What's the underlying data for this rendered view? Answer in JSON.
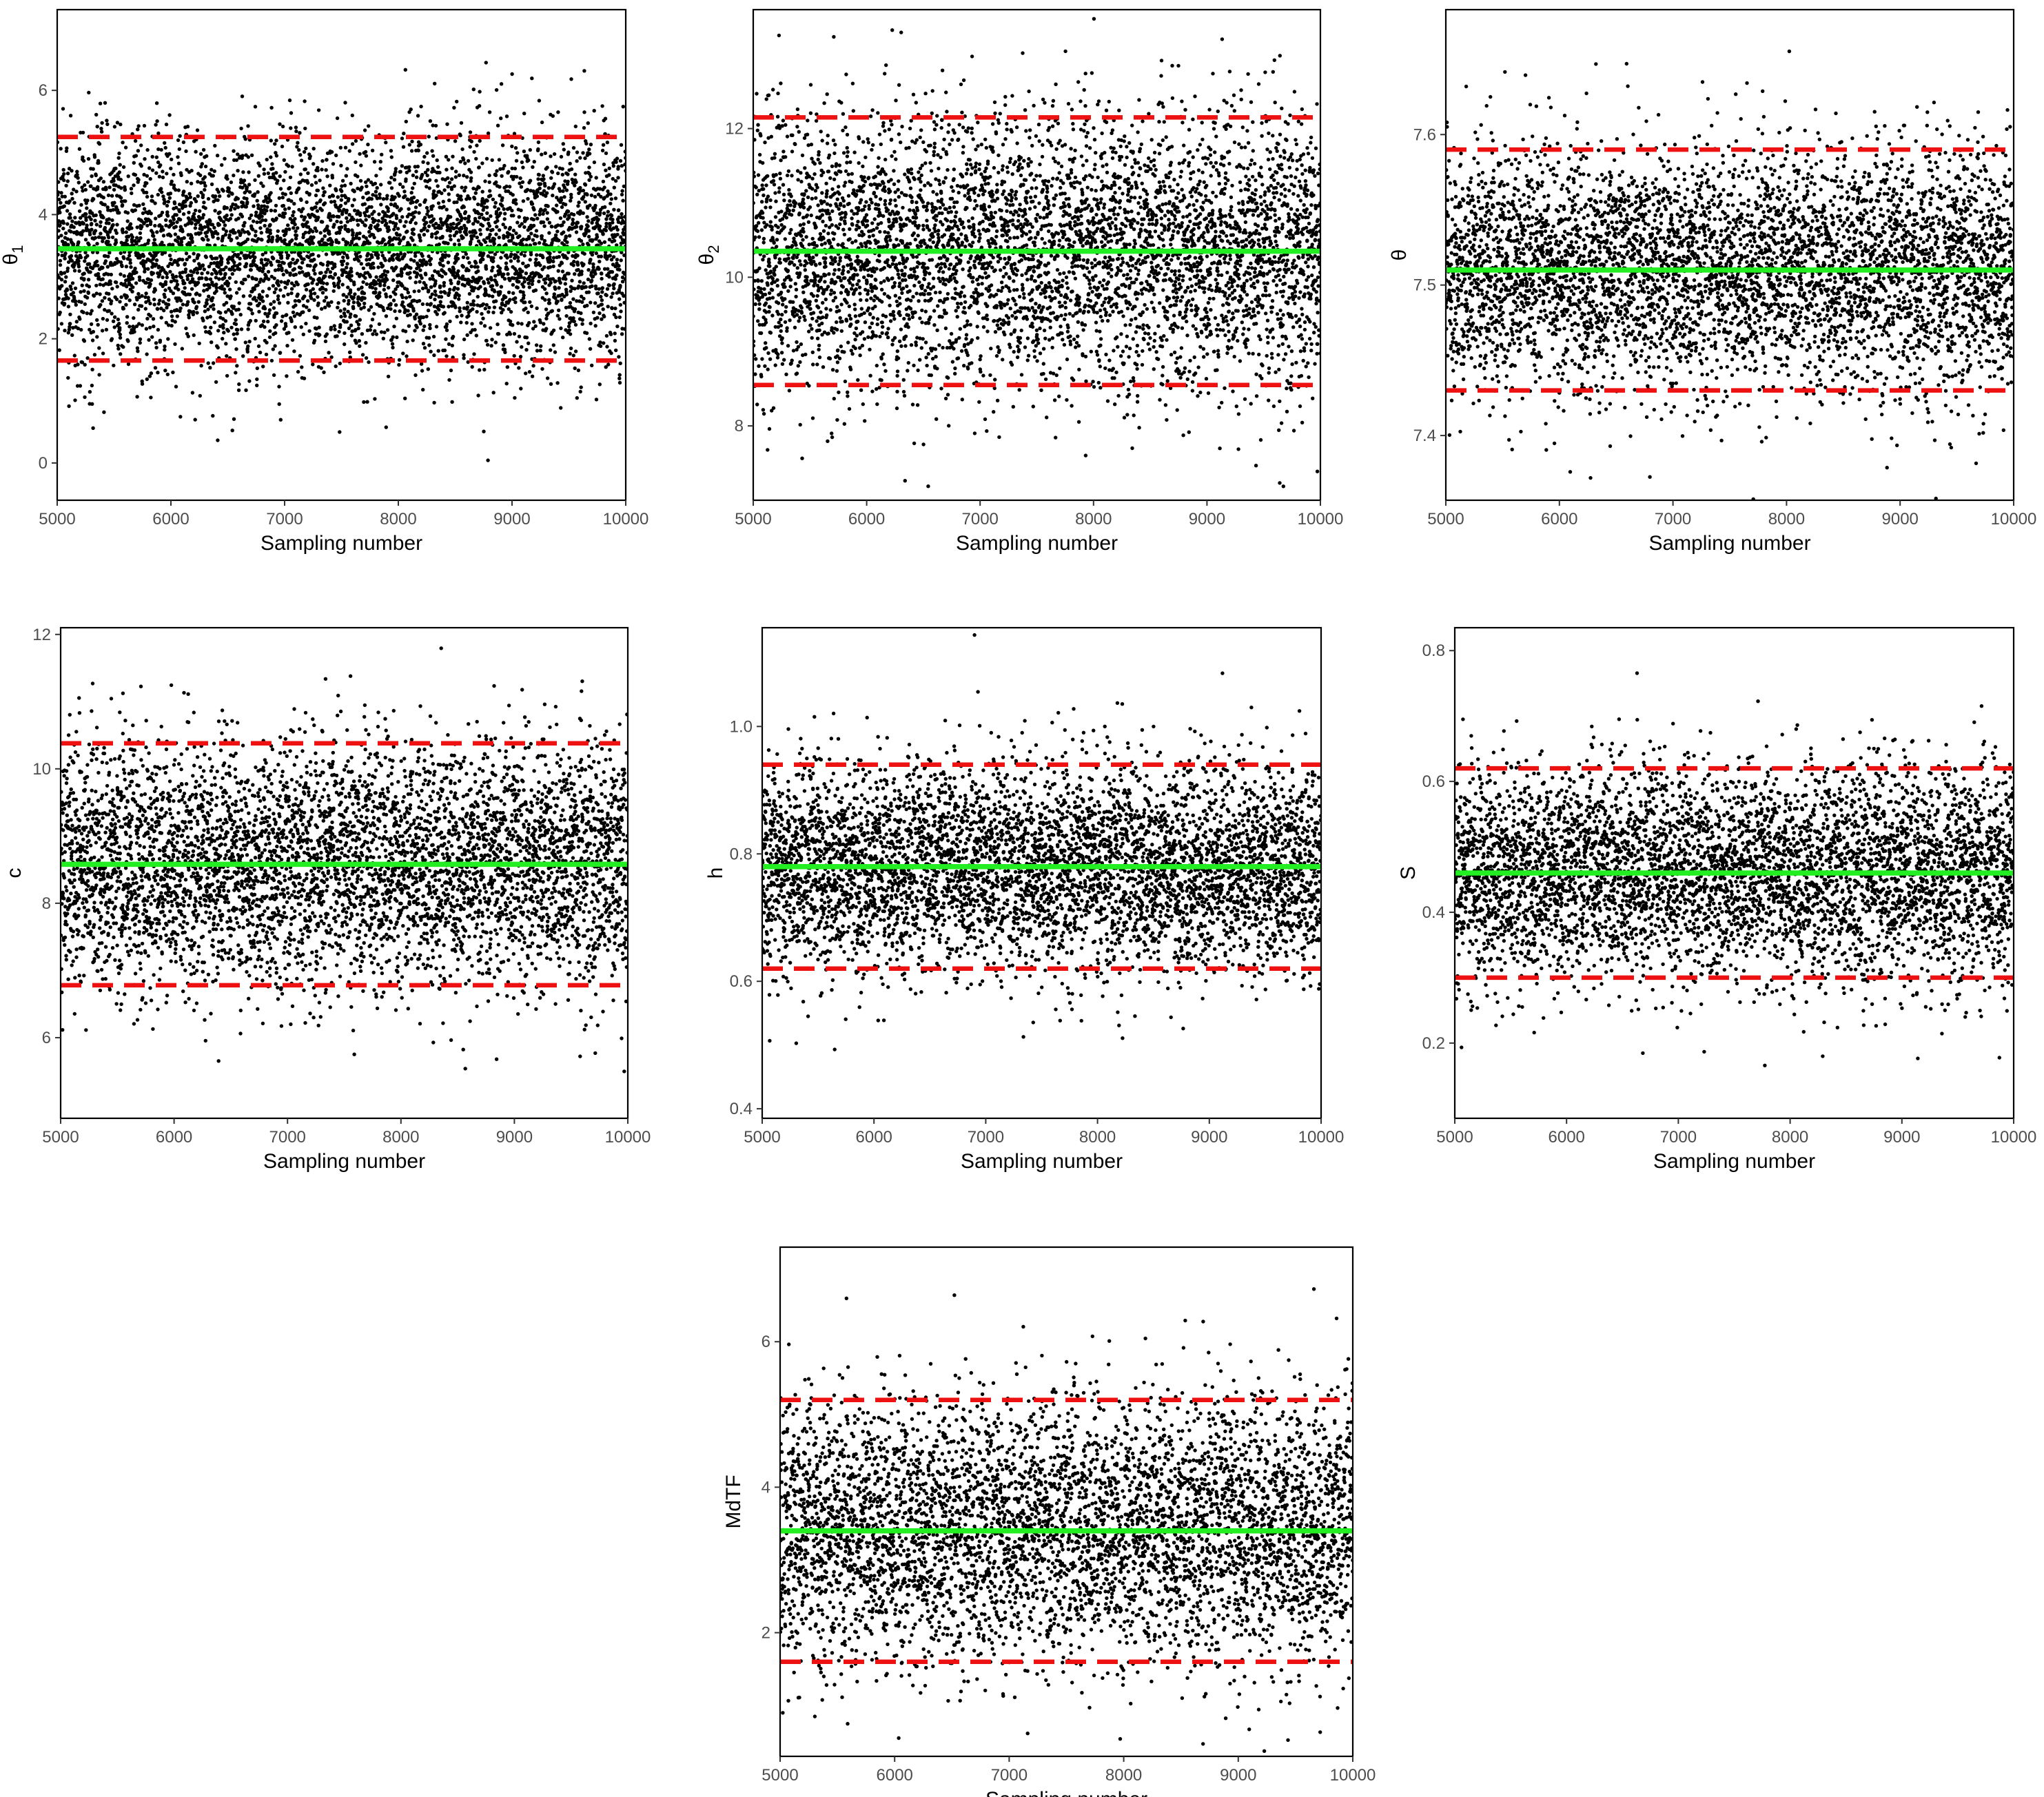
{
  "figure": {
    "description_label": "MCMC trace plots"
  },
  "colors": {
    "points": "#000000",
    "mean_line": "#22ee22",
    "ci_line": "#ee1111",
    "tick_text": "#4d4d4d"
  },
  "chart_data": [
    {
      "type": "scatter",
      "id": "theta1",
      "xlabel": "Sampling number",
      "ylabel": "θ",
      "ylabel_sub": "1",
      "xlim": [
        5000,
        10000
      ],
      "ylim": [
        -0.6,
        7.3
      ],
      "xticks": [
        5000,
        6000,
        7000,
        8000,
        9000,
        10000
      ],
      "yticks": [
        0,
        2,
        4,
        6
      ],
      "ytick_labels": [
        "0",
        "2",
        "4",
        "6"
      ],
      "mean": 3.45,
      "ci_lower": 1.65,
      "ci_upper": 5.25,
      "n_points": 5000
    },
    {
      "type": "scatter",
      "id": "theta2",
      "xlabel": "Sampling number",
      "ylabel": "θ",
      "ylabel_sub": "2",
      "xlim": [
        5000,
        10000
      ],
      "ylim": [
        7.0,
        13.6
      ],
      "xticks": [
        5000,
        6000,
        7000,
        8000,
        9000,
        10000
      ],
      "yticks": [
        8,
        10,
        12
      ],
      "ytick_labels": [
        "8",
        "10",
        "12"
      ],
      "mean": 10.35,
      "ci_lower": 8.55,
      "ci_upper": 12.15,
      "n_points": 5000
    },
    {
      "type": "scatter",
      "id": "theta",
      "xlabel": "Sampling number",
      "ylabel": "θ",
      "ylabel_sub": "",
      "xlim": [
        5000,
        10000
      ],
      "ylim": [
        7.357,
        7.683
      ],
      "xticks": [
        5000,
        6000,
        7000,
        8000,
        9000,
        10000
      ],
      "yticks": [
        7.4,
        7.5,
        7.6
      ],
      "ytick_labels": [
        "7.4",
        "7.5",
        "7.6"
      ],
      "mean": 7.51,
      "ci_lower": 7.43,
      "ci_upper": 7.59,
      "n_points": 5000
    },
    {
      "type": "scatter",
      "id": "c",
      "xlabel": "Sampling number",
      "ylabel": "c",
      "ylabel_sub": "",
      "xlim": [
        5000,
        10000
      ],
      "ylim": [
        4.8,
        12.1
      ],
      "xticks": [
        5000,
        6000,
        7000,
        8000,
        9000,
        10000
      ],
      "yticks": [
        6,
        8,
        10,
        12
      ],
      "ytick_labels": [
        "6",
        "8",
        "10",
        "12"
      ],
      "mean": 8.58,
      "ci_lower": 6.78,
      "ci_upper": 10.38,
      "n_points": 5000
    },
    {
      "type": "scatter",
      "id": "h",
      "xlabel": "Sampling number",
      "ylabel": "h",
      "ylabel_sub": "",
      "xlim": [
        5000,
        10000
      ],
      "ylim": [
        0.385,
        1.155
      ],
      "xticks": [
        5000,
        6000,
        7000,
        8000,
        9000,
        10000
      ],
      "yticks": [
        0.4,
        0.6,
        0.8,
        1.0
      ],
      "ytick_labels": [
        "0.4",
        "0.6",
        "0.8",
        "1.0"
      ],
      "mean": 0.78,
      "ci_lower": 0.62,
      "ci_upper": 0.94,
      "n_points": 5000
    },
    {
      "type": "scatter",
      "id": "S",
      "xlabel": "Sampling number",
      "ylabel": "S",
      "ylabel_sub": "",
      "xlim": [
        5000,
        10000
      ],
      "ylim": [
        0.085,
        0.835
      ],
      "xticks": [
        5000,
        6000,
        7000,
        8000,
        9000,
        10000
      ],
      "yticks": [
        0.2,
        0.4,
        0.6,
        0.8
      ],
      "ytick_labels": [
        "0.2",
        "0.4",
        "0.6",
        "0.8"
      ],
      "mean": 0.46,
      "ci_lower": 0.3,
      "ci_upper": 0.62,
      "n_points": 5000
    },
    {
      "type": "scatter",
      "id": "MdTF",
      "xlabel": "Sampling number",
      "ylabel": "MdTF",
      "ylabel_sub": "",
      "xlim": [
        5000,
        10000
      ],
      "ylim": [
        0.3,
        7.3
      ],
      "xticks": [
        5000,
        6000,
        7000,
        8000,
        9000,
        10000
      ],
      "yticks": [
        2,
        4,
        6
      ],
      "ytick_labels": [
        "2",
        "4",
        "6"
      ],
      "mean": 3.4,
      "ci_lower": 1.6,
      "ci_upper": 5.2,
      "n_points": 5000
    }
  ]
}
